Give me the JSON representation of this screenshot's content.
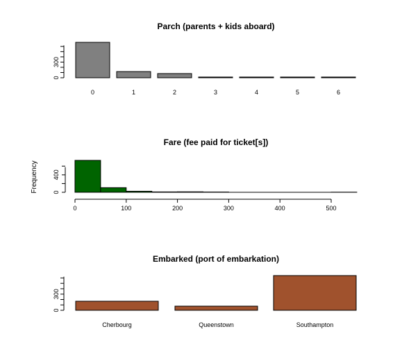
{
  "chart_data": [
    {
      "type": "bar",
      "title": "Parch (parents + kids aboard)",
      "xlabel": "",
      "ylabel": "",
      "categories": [
        "0",
        "1",
        "2",
        "3",
        "4",
        "5",
        "6"
      ],
      "values": [
        678,
        118,
        80,
        5,
        4,
        5,
        1
      ],
      "yticks": [
        0,
        300
      ],
      "ylim": [
        0,
        700
      ],
      "grid": false,
      "bar_color": "#808080"
    },
    {
      "type": "bar",
      "title": "Fare (fee paid for ticket[s])",
      "xlabel": "",
      "ylabel": "Frequency",
      "bins": [
        [
          0,
          50
        ],
        [
          50,
          100
        ],
        [
          100,
          150
        ],
        [
          150,
          200
        ],
        [
          200,
          250
        ],
        [
          250,
          300
        ],
        [
          300,
          350
        ],
        [
          350,
          400
        ],
        [
          400,
          450
        ],
        [
          450,
          500
        ],
        [
          500,
          550
        ]
      ],
      "values": [
        732,
        106,
        24,
        9,
        11,
        6,
        0,
        0,
        0,
        0,
        3
      ],
      "xticks": [
        0,
        100,
        200,
        300,
        400,
        500
      ],
      "yticks": [
        0,
        400
      ],
      "xlim": [
        0,
        550
      ],
      "ylim": [
        0,
        750
      ],
      "grid": false,
      "bar_color": "#006400"
    },
    {
      "type": "bar",
      "title": "Embarked (port of embarkation)",
      "xlabel": "",
      "ylabel": "",
      "categories": [
        "Cherbourg",
        "Queenstown",
        "Southampton"
      ],
      "values": [
        168,
        77,
        644
      ],
      "yticks": [
        0,
        300
      ],
      "ylim": [
        0,
        700
      ],
      "grid": false,
      "bar_color": "#a0522d"
    }
  ]
}
